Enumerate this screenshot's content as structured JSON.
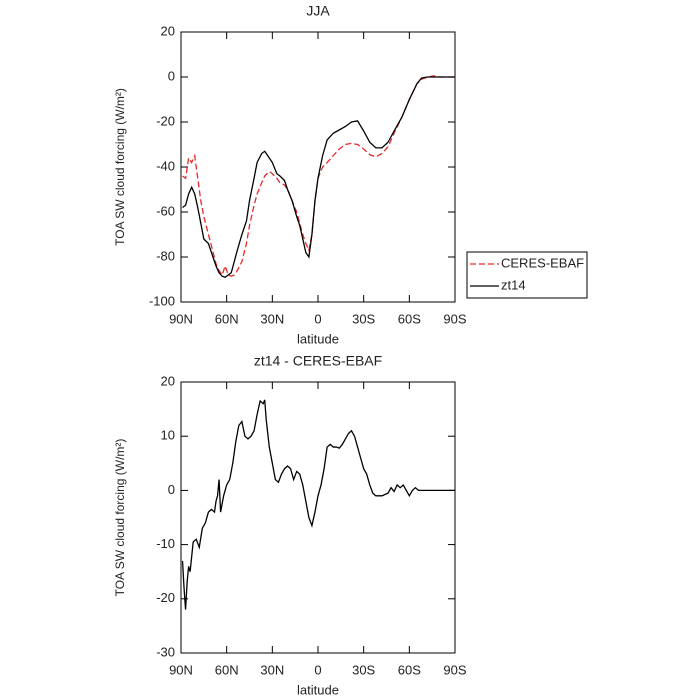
{
  "chart_data": [
    {
      "type": "line",
      "title": "JJA",
      "x_label": "latitude",
      "y_label": "TOA SW cloud forcing (W/m²)",
      "x": [
        89,
        87,
        85,
        83,
        81,
        79,
        77,
        75,
        72,
        70,
        67,
        65,
        63,
        61,
        59,
        57,
        55,
        53,
        50,
        47,
        45,
        42,
        40,
        37,
        35,
        32,
        30,
        27,
        25,
        22,
        20,
        17,
        14,
        12,
        10,
        8,
        6,
        4,
        2,
        0,
        -3,
        -6,
        -10,
        -14,
        -18,
        -22,
        -26,
        -30,
        -34,
        -38,
        -42,
        -46,
        -50,
        -55,
        -60,
        -65,
        -68,
        -72,
        -76,
        -80,
        -85,
        -90
      ],
      "series": [
        {
          "name": "CERES-EBAF",
          "color": "#e8292a",
          "style": "dashed",
          "values": [
            -44,
            -45,
            -36,
            -38,
            -35,
            -45,
            -55,
            -62,
            -70,
            -75,
            -83,
            -86,
            -88,
            -84,
            -88,
            -88.5,
            -88,
            -86,
            -82,
            -74,
            -66,
            -57,
            -52,
            -47,
            -44,
            -42,
            -43,
            -45,
            -47,
            -48,
            -50,
            -55,
            -60,
            -65,
            -70,
            -74,
            -77,
            -70,
            -55,
            -45,
            -40,
            -38,
            -35,
            -32,
            -30,
            -29.5,
            -30,
            -32,
            -34.5,
            -35.5,
            -34,
            -31,
            -25,
            -18,
            -10,
            -3,
            -1,
            0,
            0.5,
            0,
            0,
            0
          ]
        },
        {
          "name": "zt14",
          "color": "#000000",
          "style": "solid",
          "values": [
            -58,
            -57,
            -52,
            -49,
            -52,
            -58,
            -65,
            -72,
            -74,
            -78,
            -84,
            -87,
            -88.5,
            -89,
            -88,
            -87,
            -82,
            -77,
            -70,
            -64,
            -55,
            -45,
            -38,
            -34,
            -33,
            -36,
            -38,
            -43,
            -44,
            -46,
            -50,
            -55,
            -62,
            -66,
            -72,
            -78,
            -80,
            -70,
            -55,
            -45,
            -35,
            -28,
            -25,
            -23.5,
            -22,
            -20,
            -19.5,
            -24,
            -29,
            -31.5,
            -31.5,
            -29,
            -24,
            -18,
            -10,
            -3,
            -0.5,
            0,
            0,
            0,
            0,
            0
          ]
        }
      ],
      "xlim": [
        90,
        -90
      ],
      "xticks": [
        {
          "value": 90,
          "label": "90N"
        },
        {
          "value": 60,
          "label": "60N"
        },
        {
          "value": 30,
          "label": "30N"
        },
        0,
        {
          "value": -30,
          "label": "30S"
        },
        {
          "value": -60,
          "label": "60S"
        },
        {
          "value": -90,
          "label": "90S"
        }
      ],
      "ylim": [
        -100,
        20
      ],
      "yticks": [
        -100,
        -80,
        -60,
        -40,
        -20,
        0,
        20
      ],
      "legend": "right"
    },
    {
      "type": "line",
      "title": "zt14 - CERES-EBAF",
      "x_label": "latitude",
      "y_label": "TOA SW cloud forcing (W/m²)",
      "x": [
        89,
        88,
        87,
        86,
        85,
        84,
        82,
        80,
        78,
        76,
        74,
        72,
        70,
        68,
        67,
        66,
        65,
        64,
        62,
        60,
        58,
        56,
        54,
        52,
        50,
        48,
        46,
        44,
        42,
        40,
        38,
        36,
        35,
        34,
        32,
        30,
        28,
        26,
        24,
        22,
        20,
        18,
        16,
        14,
        12,
        10,
        8,
        6,
        4,
        2,
        0,
        -2,
        -4,
        -6,
        -8,
        -10,
        -12,
        -14,
        -16,
        -18,
        -20,
        -22,
        -24,
        -26,
        -28,
        -30,
        -32,
        -34,
        -36,
        -38,
        -42,
        -46,
        -48,
        -50,
        -52,
        -54,
        -56,
        -58,
        -60,
        -62,
        -64,
        -66,
        -70,
        -90
      ],
      "values": [
        -13,
        -18,
        -22,
        -17,
        -14,
        -15,
        -9.5,
        -9,
        -10.5,
        -7,
        -6,
        -4,
        -3.5,
        -4,
        -2,
        -1,
        2,
        -4,
        -1,
        1,
        2,
        5,
        9,
        12,
        12.7,
        10,
        9.5,
        10,
        11,
        14,
        16.5,
        16,
        16.7,
        13,
        8,
        5,
        2,
        1.5,
        3,
        4,
        4.5,
        4,
        2,
        3.5,
        3,
        1,
        -2,
        -5,
        -6.5,
        -4,
        -1,
        1,
        4,
        8,
        8.5,
        8,
        8,
        7.8,
        8.5,
        9.5,
        10.5,
        11,
        10,
        8,
        6,
        4,
        3,
        1,
        -0.5,
        -1,
        -1,
        -0.5,
        0.5,
        -0.2,
        1,
        0.5,
        1,
        0,
        -1,
        0,
        0.5,
        0,
        0,
        0
      ],
      "color": "#000000",
      "style": "solid",
      "xlim": [
        90,
        -90
      ],
      "xticks": [
        {
          "value": 90,
          "label": "90N"
        },
        {
          "value": 60,
          "label": "60N"
        },
        {
          "value": 30,
          "label": "30N"
        },
        0,
        {
          "value": -30,
          "label": "30S"
        },
        {
          "value": -60,
          "label": "60S"
        },
        {
          "value": -90,
          "label": "90S"
        }
      ],
      "ylim": [
        -30,
        20
      ],
      "yticks": [
        -30,
        -20,
        -10,
        0,
        10,
        20
      ]
    }
  ]
}
